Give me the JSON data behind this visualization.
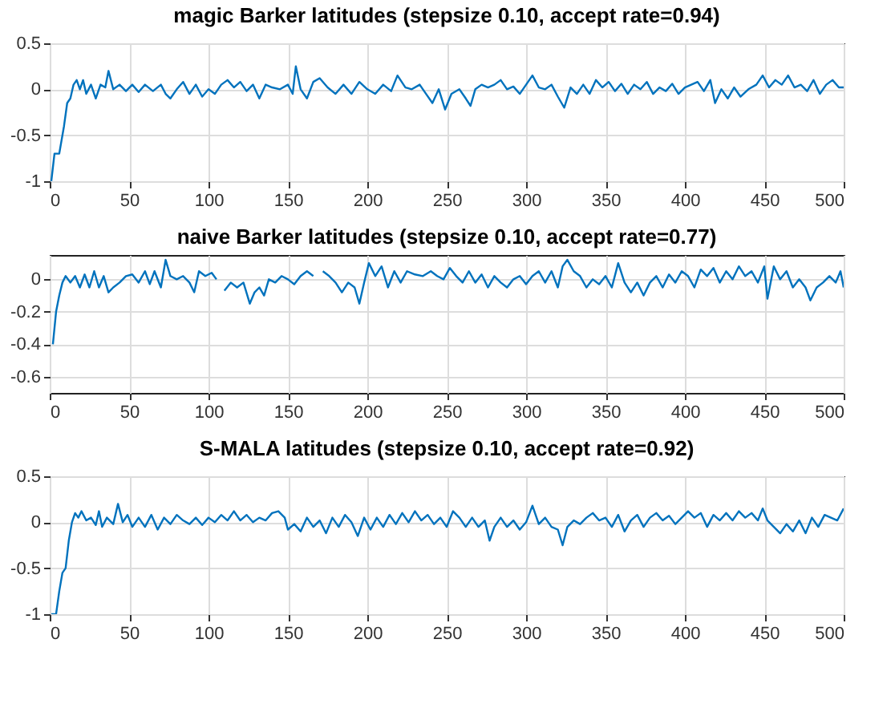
{
  "chart_data": [
    {
      "type": "line",
      "title": "magic Barker latitudes (stepsize 0.10, accept rate=0.94)",
      "xlim": [
        0,
        500
      ],
      "xticks": [
        0,
        50,
        100,
        150,
        200,
        250,
        300,
        350,
        400,
        450,
        500
      ],
      "ylim": [
        -1,
        0.5
      ],
      "yticks": [
        -1,
        -0.5,
        0,
        0.5
      ],
      "grid": true,
      "series": [
        {
          "color": "#0072bd",
          "x": [
            1,
            3,
            6,
            9,
            11,
            13,
            15,
            17,
            19,
            21,
            23,
            26,
            29,
            32,
            35,
            37,
            40,
            44,
            48,
            52,
            56,
            60,
            65,
            70,
            73,
            76,
            80,
            84,
            88,
            92,
            96,
            100,
            104,
            108,
            112,
            116,
            120,
            124,
            128,
            132,
            136,
            140,
            145,
            150,
            153,
            155,
            158,
            162,
            166,
            170,
            175,
            180,
            185,
            190,
            195,
            200,
            205,
            210,
            215,
            219,
            224,
            228,
            233,
            237,
            241,
            245,
            249,
            253,
            258,
            262,
            265,
            268,
            272,
            276,
            280,
            284,
            288,
            292,
            296,
            300,
            304,
            308,
            312,
            316,
            320,
            324,
            328,
            332,
            336,
            340,
            344,
            348,
            352,
            356,
            360,
            364,
            368,
            372,
            376,
            380,
            384,
            388,
            392,
            396,
            400,
            404,
            408,
            412,
            416,
            419,
            423,
            427,
            431,
            435,
            440,
            445,
            449,
            453,
            457,
            461,
            465,
            469,
            473,
            477,
            481,
            485,
            489,
            493,
            497,
            500
          ],
          "values": [
            -1,
            -0.7,
            -0.7,
            -0.4,
            -0.15,
            -0.1,
            0.05,
            0.1,
            0,
            0.1,
            -0.05,
            0.05,
            -0.1,
            0.05,
            0.02,
            0.2,
            0,
            0.05,
            -0.02,
            0.05,
            -0.03,
            0.05,
            -0.02,
            0.05,
            -0.05,
            -0.1,
            0,
            0.08,
            -0.05,
            0.05,
            -0.08,
            0,
            -0.05,
            0.05,
            0.1,
            0.02,
            0.08,
            -0.02,
            0.05,
            -0.1,
            0.05,
            0.02,
            0,
            0.05,
            -0.05,
            0.25,
            0,
            -0.1,
            0.08,
            0.12,
            0.02,
            -0.05,
            0.05,
            -0.05,
            0.08,
            0,
            -0.05,
            0.05,
            -0.02,
            0.15,
            0.02,
            0,
            0.05,
            -0.05,
            -0.15,
            0,
            -0.22,
            -0.05,
            0,
            -0.1,
            -0.18,
            0,
            0.05,
            0.02,
            0.05,
            0.1,
            0,
            0.03,
            -0.05,
            0.05,
            0.15,
            0.02,
            0,
            0.05,
            -0.08,
            -0.2,
            0.02,
            -0.05,
            0.05,
            -0.05,
            0.1,
            0.02,
            0.08,
            -0.02,
            0.06,
            -0.05,
            0.05,
            0,
            0.08,
            -0.05,
            0.02,
            -0.02,
            0.06,
            -0.05,
            0.02,
            0.05,
            0.08,
            -0.02,
            0.1,
            -0.15,
            0,
            -0.1,
            0.02,
            -0.08,
            0,
            0.05,
            0.15,
            0.02,
            0.1,
            0.05,
            0.15,
            0.02,
            0.05,
            -0.02,
            0.1,
            -0.05,
            0.05,
            0.1,
            0.02,
            0.02
          ]
        }
      ]
    },
    {
      "type": "line",
      "title": "naive Barker latitudes (stepsize 0.10, accept rate=0.77)",
      "xlim": [
        0,
        500
      ],
      "xticks": [
        0,
        50,
        100,
        150,
        200,
        250,
        300,
        350,
        400,
        450,
        500
      ],
      "ylim": [
        -0.7,
        0.15
      ],
      "yticks": [
        -0.6,
        -0.4,
        -0.2,
        0
      ],
      "grid": true,
      "series": [
        {
          "color": "#0072bd",
          "x": [
            2,
            4,
            6,
            8,
            10,
            13,
            16,
            19,
            22,
            25,
            28,
            31,
            34,
            37,
            40,
            44,
            48,
            52,
            56,
            60,
            63,
            66,
            70,
            73,
            76,
            80,
            84,
            88,
            91,
            94,
            98,
            102,
            105,
            107,
            110,
            114,
            118,
            122,
            126,
            129,
            132,
            135,
            138,
            142,
            146,
            150,
            154,
            158,
            162,
            166,
            169,
            172,
            176,
            180,
            184,
            188,
            192,
            195,
            198,
            201,
            205,
            209,
            213,
            217,
            221,
            225,
            230,
            235,
            240,
            244,
            248,
            252,
            256,
            260,
            264,
            268,
            272,
            276,
            280,
            284,
            288,
            292,
            296,
            300,
            304,
            308,
            312,
            316,
            320,
            323,
            326,
            330,
            334,
            338,
            342,
            346,
            350,
            354,
            358,
            362,
            366,
            370,
            374,
            378,
            382,
            386,
            390,
            394,
            398,
            402,
            406,
            410,
            414,
            418,
            422,
            426,
            430,
            434,
            438,
            442,
            446,
            450,
            452,
            456,
            460,
            464,
            468,
            472,
            476,
            479,
            483,
            487,
            491,
            495,
            498,
            500
          ],
          "values": [
            -0.4,
            -0.2,
            -0.1,
            -0.02,
            0.02,
            -0.02,
            0.02,
            -0.05,
            0.03,
            -0.05,
            0.05,
            -0.05,
            0.02,
            -0.08,
            -0.05,
            -0.02,
            0.02,
            0.03,
            -0.02,
            0.05,
            -0.03,
            0.05,
            -0.05,
            0.12,
            0.02,
            0,
            0.02,
            -0.02,
            -0.08,
            0.05,
            0.02,
            0.04,
            0,
            null,
            -0.07,
            -0.02,
            -0.05,
            -0.02,
            -0.15,
            -0.08,
            -0.05,
            -0.1,
            0,
            -0.02,
            0.02,
            0,
            -0.03,
            0.02,
            0.05,
            0.02,
            null,
            0.05,
            0.02,
            -0.02,
            -0.08,
            -0.02,
            -0.05,
            -0.15,
            -0.02,
            0.1,
            0.02,
            0.08,
            -0.05,
            0.05,
            -0.02,
            0.05,
            0.03,
            0.02,
            0.05,
            0.02,
            0,
            0.07,
            0.02,
            -0.02,
            0.05,
            -0.02,
            0.03,
            -0.05,
            0.02,
            -0.02,
            -0.05,
            0,
            0.02,
            -0.03,
            0.02,
            0.05,
            -0.02,
            0.05,
            -0.05,
            0.08,
            0.12,
            0.05,
            0.02,
            -0.05,
            0,
            -0.03,
            0.02,
            -0.05,
            0.1,
            -0.02,
            -0.08,
            -0.02,
            -0.1,
            -0.02,
            0.02,
            -0.05,
            0.03,
            -0.02,
            0.05,
            0.02,
            -0.05,
            0.06,
            0.02,
            0.07,
            -0.02,
            0.05,
            0,
            0.08,
            0.02,
            0.05,
            -0.02,
            0.08,
            -0.12,
            0.08,
            0,
            0.05,
            -0.05,
            0,
            -0.05,
            -0.13,
            -0.05,
            -0.02,
            0.02,
            -0.02,
            0.05,
            -0.05
          ]
        }
      ]
    },
    {
      "type": "line",
      "title": "S-MALA latitudes (stepsize 0.10, accept rate=0.92)",
      "xlim": [
        0,
        500
      ],
      "xticks": [
        0,
        50,
        100,
        150,
        200,
        250,
        300,
        350,
        400,
        450,
        500
      ],
      "ylim": [
        -1,
        0.5
      ],
      "yticks": [
        -1,
        -0.5,
        0,
        0.5
      ],
      "grid": true,
      "series": [
        {
          "color": "#0072bd",
          "x": [
            1,
            4,
            6,
            8,
            10,
            12,
            14,
            16,
            18,
            20,
            23,
            26,
            29,
            31,
            33,
            36,
            40,
            43,
            46,
            49,
            52,
            56,
            60,
            64,
            68,
            72,
            76,
            80,
            84,
            88,
            92,
            96,
            100,
            104,
            108,
            112,
            116,
            120,
            124,
            128,
            132,
            136,
            140,
            144,
            148,
            150,
            154,
            158,
            162,
            166,
            170,
            174,
            178,
            182,
            186,
            190,
            194,
            198,
            202,
            206,
            210,
            214,
            218,
            222,
            226,
            230,
            234,
            238,
            242,
            246,
            250,
            254,
            258,
            262,
            266,
            270,
            274,
            277,
            280,
            284,
            288,
            292,
            296,
            300,
            304,
            308,
            312,
            316,
            320,
            323,
            326,
            330,
            334,
            338,
            342,
            346,
            350,
            354,
            358,
            362,
            366,
            370,
            374,
            378,
            382,
            386,
            390,
            394,
            398,
            402,
            406,
            410,
            414,
            418,
            422,
            426,
            430,
            434,
            438,
            442,
            446,
            449,
            452,
            456,
            460,
            464,
            468,
            472,
            476,
            480,
            484,
            488,
            492,
            496,
            500
          ],
          "values": [
            -1,
            -1,
            -0.75,
            -0.55,
            -0.5,
            -0.2,
            0,
            0.1,
            0.05,
            0.12,
            0.02,
            0.05,
            -0.03,
            0.12,
            -0.05,
            0.05,
            -0.02,
            0.2,
            0,
            0.08,
            -0.05,
            0.05,
            -0.05,
            0.08,
            -0.08,
            0.05,
            -0.02,
            0.08,
            0.02,
            -0.02,
            0.05,
            -0.03,
            0.05,
            0,
            0.08,
            0.02,
            0.12,
            0.02,
            0.08,
            0,
            0.05,
            0.02,
            0.1,
            0.12,
            0.05,
            -0.08,
            -0.02,
            -0.1,
            0.05,
            -0.05,
            0.02,
            -0.12,
            0.05,
            -0.05,
            0.08,
            0,
            -0.15,
            0.05,
            -0.08,
            0.05,
            -0.05,
            0.08,
            -0.02,
            0.1,
            0,
            0.12,
            0.02,
            0.08,
            -0.02,
            0.05,
            -0.05,
            0.12,
            0.05,
            -0.05,
            0.05,
            -0.05,
            0.02,
            -0.2,
            -0.05,
            0.05,
            -0.05,
            0.02,
            -0.08,
            0,
            0.18,
            -0.02,
            0.05,
            -0.05,
            -0.08,
            -0.25,
            -0.05,
            0.02,
            -0.02,
            0.05,
            0.1,
            0.02,
            0.05,
            -0.05,
            0.08,
            -0.1,
            0.02,
            0.08,
            -0.05,
            0.05,
            0.1,
            0.02,
            0.07,
            -0.02,
            0.05,
            0.12,
            0.05,
            0.1,
            -0.05,
            0.08,
            0.02,
            0.1,
            0.02,
            0.12,
            0.05,
            0.1,
            0.02,
            0.15,
            0.02,
            -0.05,
            -0.12,
            -0.02,
            -0.1,
            0.02,
            -0.12,
            0.05,
            -0.05,
            0.08,
            0.05,
            0.02,
            0.15
          ]
        }
      ]
    }
  ]
}
